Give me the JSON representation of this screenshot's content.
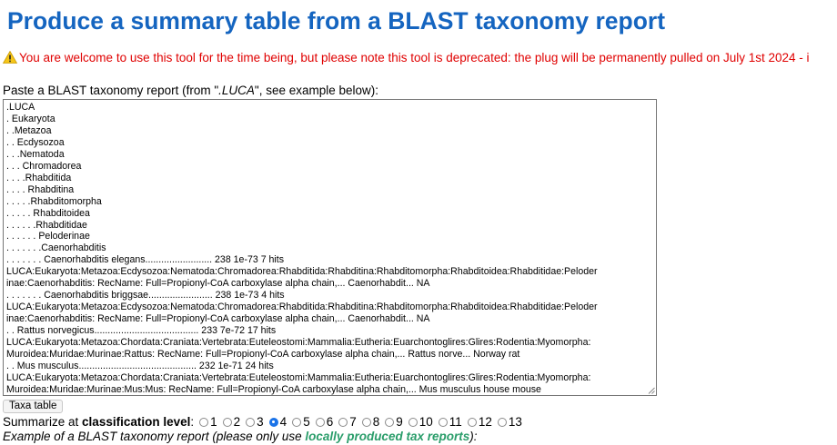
{
  "page": {
    "title": "Produce a summary table from a BLAST taxonomy report"
  },
  "warning": {
    "icon": "warning-triangle-icon",
    "text": "You are welcome to use this tool for the time being, but please note this tool is deprecated: the plug will be permanently pulled on July 1st 2024 - i"
  },
  "prompt": {
    "before": "Paste a BLAST taxonomy report (from \"",
    "ext": ".LUCA",
    "after": "\", see example below):"
  },
  "report": {
    "value": ".LUCA\n. Eukaryota\n. .Metazoa\n. . Ecdysozoa\n. . .Nematoda\n. . . Chromadorea\n. . . .Rhabditida\n. . . . Rhabditina\n. . . . .Rhabditomorpha\n. . . . . Rhabditoidea\n. . . . . .Rhabditidae\n. . . . . . Peloderinae\n. . . . . . .Caenorhabditis\n. . . . . . . Caenorhabditis elegans......................... 238 1e-73 7 hits\nLUCA:Eukaryota:Metazoa:Ecdysozoa:Nematoda:Chromadorea:Rhabditida:Rhabditina:Rhabditomorpha:Rhabditoidea:Rhabditidae:Peloder\ninae:Caenorhabditis: RecName: Full=Propionyl-CoA carboxylase alpha chain,... Caenorhabdit... NA\n. . . . . . . Caenorhabditis briggsae........................ 238 1e-73 4 hits\nLUCA:Eukaryota:Metazoa:Ecdysozoa:Nematoda:Chromadorea:Rhabditida:Rhabditina:Rhabditomorpha:Rhabditoidea:Rhabditidae:Peloder\ninae:Caenorhabditis: RecName: Full=Propionyl-CoA carboxylase alpha chain,... Caenorhabdit... NA\n. . Rattus norvegicus....................................... 233 7e-72 17 hits\nLUCA:Eukaryota:Metazoa:Chordata:Craniata:Vertebrata:Euteleostomi:Mammalia:Eutheria:Euarchontoglires:Glires:Rodentia:Myomorpha:\nMuroidea:Muridae:Murinae:Rattus: RecName: Full=Propionyl-CoA carboxylase alpha chain,... Rattus norve... Norway rat\n. . Mus musculus............................................ 232 1e-71 24 hits\nLUCA:Eukaryota:Metazoa:Chordata:Craniata:Vertebrata:Euteleostomi:Mammalia:Eutheria:Euarchontoglires:Glires:Rodentia:Myomorpha:\nMuroidea:Muridae:Murinae:Mus:Mus: RecName: Full=Propionyl-CoA carboxylase alpha chain,... Mus musculus house mouse"
  },
  "button": {
    "label": "Taxa table"
  },
  "level": {
    "prefix": "Summarize at ",
    "bold": "classification level",
    "suffix": ":",
    "options": [
      "1",
      "2",
      "3",
      "4",
      "5",
      "6",
      "7",
      "8",
      "9",
      "10",
      "11",
      "12",
      "13"
    ],
    "selected": "4"
  },
  "example": {
    "before": "Example of a BLAST taxonomy report (please only use ",
    "link": "locally produced tax reports",
    "after": "):"
  },
  "colors": {
    "title": "#1565c0",
    "warning": "#e00000",
    "link": "#2a9d6a",
    "radio_selected": "#1a73e8"
  }
}
